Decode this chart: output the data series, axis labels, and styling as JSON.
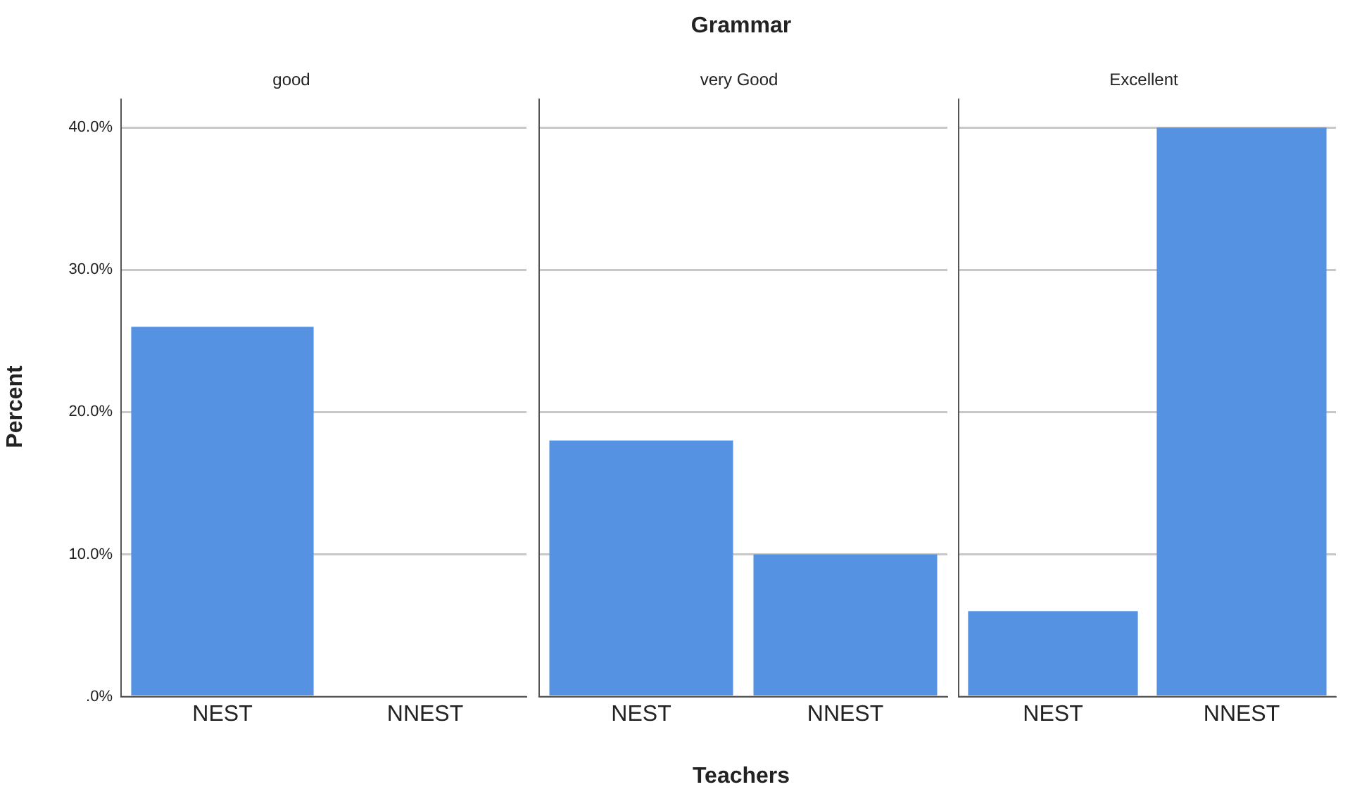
{
  "chart_data": [
    {
      "type": "bar",
      "title": "good",
      "ylabel": "Percent",
      "categories": [
        "NEST",
        "NNEST"
      ],
      "values": [
        26,
        0
      ],
      "color": "#5592e2",
      "ylim": [
        0,
        42
      ],
      "yticks": [
        {
          "value": 0,
          "label": ".0%"
        },
        {
          "value": 10,
          "label": "10.0%"
        },
        {
          "value": 20,
          "label": "20.0%"
        },
        {
          "value": 30,
          "label": "30.0%"
        },
        {
          "value": 40,
          "label": "40.0%"
        }
      ],
      "grid": "y"
    },
    {
      "type": "bar",
      "title": "very Good",
      "xlabel": "Teachers",
      "annotations": [
        "Grammar"
      ],
      "categories": [
        "NEST",
        "NNEST"
      ],
      "values": [
        18,
        10
      ],
      "color": "#5592e2",
      "ylim": [
        0,
        42
      ],
      "yticks": [
        0,
        10,
        20,
        30,
        40
      ],
      "grid": "y",
      "tick_labels": "x"
    },
    {
      "type": "bar",
      "title": "Excellent",
      "categories": [
        "NEST",
        "NNEST"
      ],
      "values": [
        6,
        40
      ],
      "color": "#5592e2",
      "ylim": [
        0,
        42
      ],
      "yticks": [
        0,
        10,
        20,
        30,
        40
      ],
      "grid": "y",
      "tick_labels": "x"
    }
  ]
}
